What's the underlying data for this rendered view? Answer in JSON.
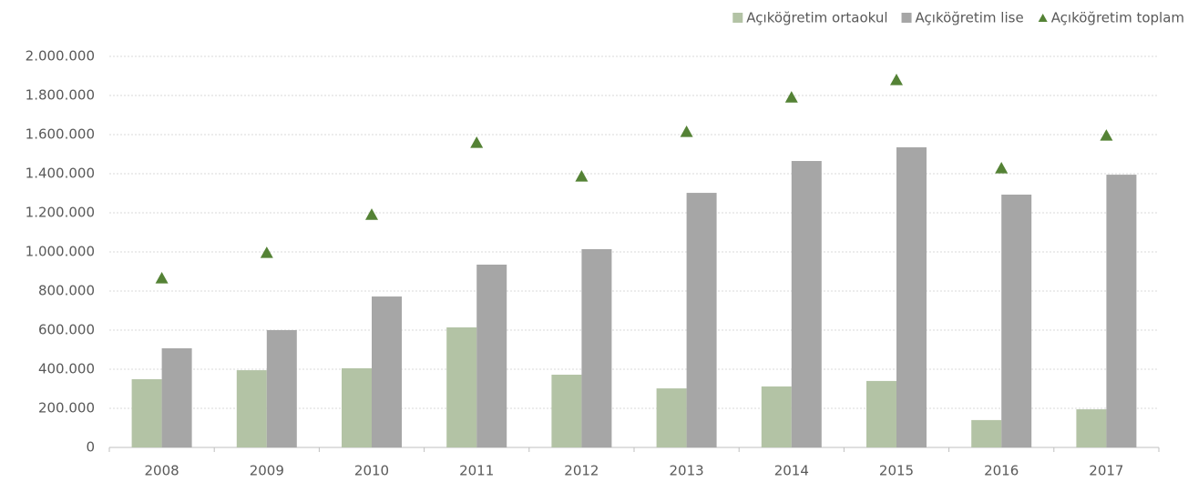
{
  "chart_data": {
    "type": "bar",
    "categories": [
      "2008",
      "2009",
      "2010",
      "2011",
      "2012",
      "2013",
      "2014",
      "2015",
      "2016",
      "2017"
    ],
    "series": [
      {
        "name": "Açıköğretim ortaokul",
        "color": "#b3c3a5",
        "values": [
          349000,
          395000,
          405000,
          614000,
          372000,
          302000,
          312000,
          340000,
          140000,
          195000
        ]
      },
      {
        "name": "Açıköğretim lise",
        "color": "#a6a6a6",
        "values": [
          507000,
          600000,
          772000,
          935000,
          1014000,
          1302000,
          1465000,
          1535000,
          1293000,
          1395000
        ]
      },
      {
        "name": "Açıköğretim toplam",
        "color": "#548235",
        "marker": "triangle",
        "values": [
          865000,
          995000,
          1190000,
          1558000,
          1386000,
          1614000,
          1790000,
          1879000,
          1428000,
          1595000
        ]
      }
    ],
    "ylim": [
      0,
      2000000
    ],
    "yticks": [
      0,
      {
        "value": 200000,
        "label": "200.000"
      },
      {
        "value": 400000,
        "label": "400.000"
      },
      {
        "value": 600000,
        "label": "600.000"
      },
      {
        "value": 800000,
        "label": "800.000"
      },
      {
        "value": 1000000,
        "label": "1.000.000"
      },
      {
        "value": 1200000,
        "label": "1.200.000"
      },
      {
        "value": 1400000,
        "label": "1.400.000"
      },
      {
        "value": 1600000,
        "label": "1.600.000"
      },
      {
        "value": 1800000,
        "label": "1.800.000"
      },
      {
        "value": 2000000,
        "label": "2.000.000"
      }
    ],
    "grid": true,
    "legend": "top-right"
  }
}
